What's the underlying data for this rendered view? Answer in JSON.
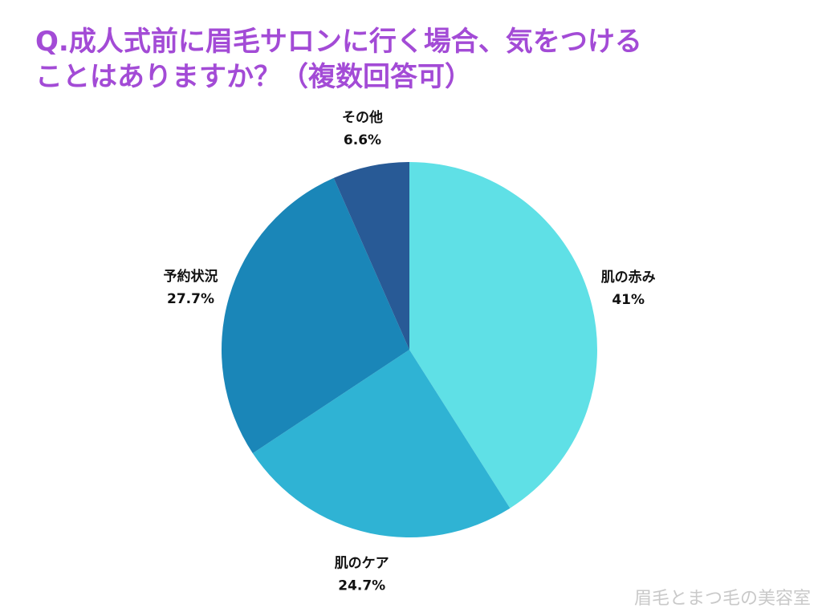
{
  "title": {
    "line1": "Q.成人式前に眉毛サロンに行く場合、気をつける",
    "line2": "ことはありますか？（複数回答可）"
  },
  "colors": {
    "title": "#a34bd6",
    "slices": [
      "#5fe0e6",
      "#2fb3d4",
      "#1a86b8",
      "#285a96"
    ],
    "label_text": "#111111",
    "watermark": "#c9c9c9"
  },
  "chart_data": {
    "type": "pie",
    "title": "Q.成人式前に眉毛サロンに行く場合、気をつけることはありますか？（複数回答可）",
    "categories": [
      "肌の赤み",
      "肌のケア",
      "予約状況",
      "その他"
    ],
    "values": [
      41,
      24.7,
      27.7,
      6.6
    ],
    "value_labels": [
      "41%",
      "24.7%",
      "27.7%",
      "6.6%"
    ],
    "start_angle_deg": 0,
    "direction": "clockwise",
    "legend": "none"
  },
  "watermark": "眉毛とまつ毛の美容室"
}
